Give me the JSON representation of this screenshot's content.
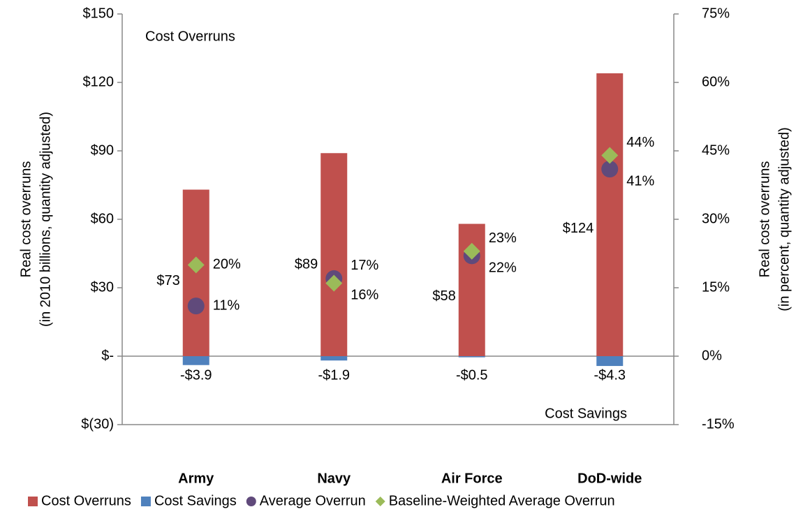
{
  "chart_data": {
    "type": "bar",
    "annotations": [
      "Cost Overruns",
      "Cost Savings"
    ],
    "y_label": [
      "Real cost overruns",
      "(in 2010 billions, quantity adjusted)"
    ],
    "y2_label": [
      "Real cost overruns",
      "(in percent, quantity adjusted)"
    ],
    "categories": [
      "Army",
      "Navy",
      "Air Force",
      "DoD-wide"
    ],
    "series": [
      {
        "name": "Cost Overruns",
        "color": "#c0504d",
        "kind": "bar",
        "values": [
          73,
          89,
          58,
          124
        ],
        "value_labels": [
          "$73",
          "$89",
          "$58",
          "$124"
        ]
      },
      {
        "name": "Cost Savings",
        "color": "#4f81bd",
        "kind": "bar",
        "values": [
          -3.9,
          -1.9,
          -0.5,
          -4.3
        ],
        "value_labels": [
          "-$3.9",
          "-$1.9",
          "-$0.5",
          "-$4.3"
        ]
      },
      {
        "name": "Average Overrun",
        "color": "#604a7b",
        "kind": "circle",
        "axis": "y2",
        "values": [
          11,
          17,
          22,
          41
        ],
        "value_labels": [
          "11%",
          "17%",
          "22%",
          "41%"
        ]
      },
      {
        "name": "Baseline-Weighted Average Overrun",
        "color": "#9bbb59",
        "kind": "diamond",
        "axis": "y2",
        "values": [
          20,
          16,
          23,
          44
        ],
        "value_labels": [
          "20%",
          "16%",
          "23%",
          "44%"
        ]
      }
    ],
    "ylim": [
      -30,
      150
    ],
    "yticks": [
      {
        "value": -30,
        "label": "$(30)"
      },
      {
        "value": 0,
        "label": "$-"
      },
      {
        "value": 30,
        "label": "$30"
      },
      {
        "value": 60,
        "label": "$60"
      },
      {
        "value": 90,
        "label": "$90"
      },
      {
        "value": 120,
        "label": "$120"
      },
      {
        "value": 150,
        "label": "$150"
      }
    ],
    "y2lim": [
      -15,
      75
    ],
    "y2ticks": [
      {
        "value": -15,
        "label": "-15%"
      },
      {
        "value": 0,
        "label": "0%"
      },
      {
        "value": 15,
        "label": "15%"
      },
      {
        "value": 30,
        "label": "30%"
      },
      {
        "value": 45,
        "label": "45%"
      },
      {
        "value": 60,
        "label": "60%"
      },
      {
        "value": 75,
        "label": "75%"
      }
    ],
    "grid": false,
    "legend": "bottom"
  }
}
